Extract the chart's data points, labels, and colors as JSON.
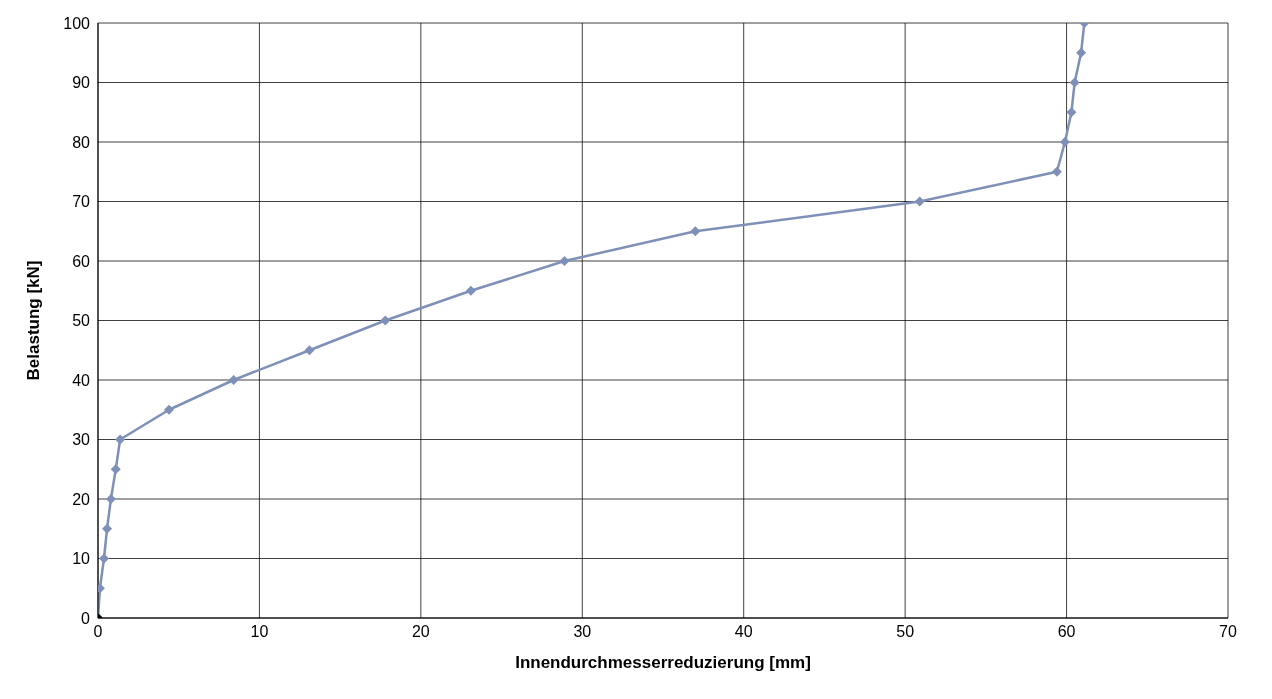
{
  "chart_data": {
    "type": "line",
    "xlabel": "Innendurchmesserreduzierung [mm]",
    "ylabel": "Belastung [kN]",
    "xlim": [
      0,
      70
    ],
    "xticks": [
      0,
      10,
      20,
      30,
      40,
      50,
      60,
      70
    ],
    "ylim": [
      0,
      100
    ],
    "yticks": [
      0,
      10,
      20,
      30,
      40,
      50,
      60,
      70,
      80,
      90,
      100
    ],
    "grid": true,
    "legend": false,
    "marker": "diamond",
    "line_style": "solid",
    "series": [
      {
        "color": "#7f90b8",
        "x": [
          0,
          0.12,
          0.37,
          0.56,
          0.8,
          1.1,
          1.37,
          4.4,
          8.4,
          13.1,
          17.8,
          23.1,
          28.9,
          37.0,
          50.9,
          59.4,
          59.9,
          60.3,
          60.5,
          60.9,
          61.1
        ],
        "values": [
          0,
          5,
          10,
          15,
          20,
          25,
          30,
          35,
          40,
          45,
          50,
          55,
          60,
          65,
          70,
          75,
          80,
          85,
          90,
          95,
          100
        ]
      },
      {
        "type": "scatter",
        "color": "#000000",
        "x": [
          0
        ],
        "values": [
          0
        ]
      }
    ]
  }
}
